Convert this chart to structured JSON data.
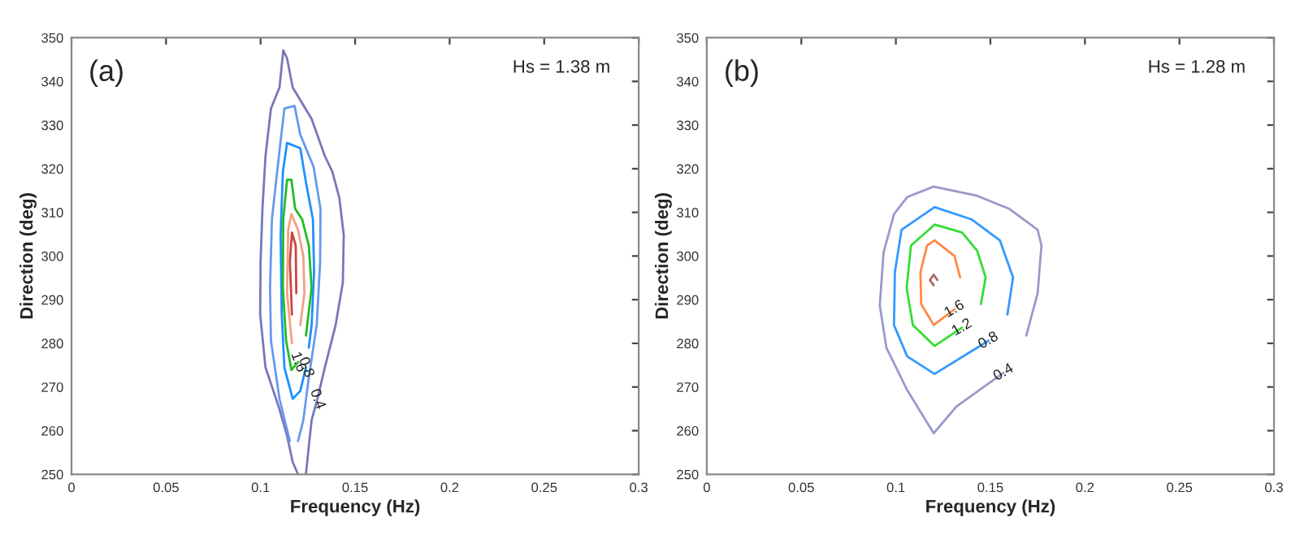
{
  "chart_data": [
    {
      "type": "line",
      "xlabel": "Frequency (Hz)",
      "ylabel": "Direction (deg)",
      "xlim": [
        0,
        0.3
      ],
      "ylim": [
        250,
        350
      ],
      "xticks": [
        0,
        0.05,
        0.1,
        0.15,
        0.2,
        0.25,
        0.3
      ],
      "yticks": [
        250,
        260,
        270,
        280,
        290,
        300,
        310,
        320,
        330,
        340,
        350
      ],
      "grid": false,
      "marker": "none",
      "line_style": "solid",
      "series": [
        {
          "color": "#7777bb",
          "x": [
            0.1198,
            0.117,
            0.114,
            0.11,
            0.1026,
            0.0998,
            0.1,
            0.101,
            0.1026,
            0.1055,
            0.11,
            0.112,
            0.114,
            0.117,
            0.127,
            0.134,
            0.138,
            0.1417,
            0.144,
            0.1435,
            0.1397,
            0.134,
            0.13,
            0.127,
            0.1255,
            0.124
          ],
          "values": [
            250,
            252.8,
            258.8,
            264.9,
            274.5,
            286.6,
            298.7,
            310.8,
            322.9,
            333.8,
            338.6,
            347.1,
            345.3,
            338.6,
            331.4,
            322.9,
            319.3,
            313.2,
            304.8,
            293.9,
            284.2,
            274.5,
            267.2,
            262.4,
            256.4,
            250
          ]
        },
        {
          "color": "#6699ee",
          "x": [
            0.1155,
            0.11,
            0.1055,
            0.105,
            0.106,
            0.11,
            0.1126,
            0.118,
            0.121,
            0.128,
            0.1317,
            0.1315,
            0.1297,
            0.1255,
            0.1226,
            0.1198
          ],
          "values": [
            257.6,
            267.3,
            280.6,
            292.7,
            308.4,
            324.1,
            333.8,
            334.4,
            327.8,
            320.5,
            310.8,
            298.7,
            284.2,
            272.1,
            262.4,
            257.6
          ]
        },
        {
          "color": "#1e8fff",
          "x": [
            0.124,
            0.121,
            0.117,
            0.1126,
            0.1112,
            0.1106,
            0.1118,
            0.114,
            0.121,
            0.124,
            0.1277,
            0.1283,
            0.127,
            0.1255
          ],
          "values": [
            274.5,
            269.1,
            267.3,
            274.5,
            286.6,
            304.8,
            319.3,
            325.9,
            324.7,
            316.9,
            308.4,
            296.3,
            284.2,
            279.0
          ]
        },
        {
          "color": "#22bb22",
          "x": [
            0.1198,
            0.1163,
            0.1135,
            0.1118,
            0.112,
            0.114,
            0.1163,
            0.1183,
            0.122,
            0.1255,
            0.127,
            0.124
          ],
          "values": [
            275.7,
            273.9,
            280.6,
            292.7,
            308.4,
            317.5,
            317.5,
            310.8,
            308.4,
            302.4,
            292.7,
            281.8
          ]
        },
        {
          "color": "#f4a080",
          "x": [
            0.1166,
            0.114,
            0.1146,
            0.1163,
            0.1198,
            0.1226,
            0.1232,
            0.121
          ],
          "values": [
            280,
            291.5,
            306,
            309.6,
            306,
            300,
            291.5,
            284.2
          ]
        },
        {
          "color": "#cc4444",
          "x": [
            0.1166,
            0.1155,
            0.1166,
            0.1186,
            0.1189
          ],
          "values": [
            286.6,
            298.7,
            305.4,
            302.4,
            291.5
          ]
        }
      ],
      "annotations": [
        "(a)",
        "Hs = 1.38 m",
        {
          "text": "1.6",
          "x": 0.1198,
          "y": 275.7
        },
        {
          "text": "0.8",
          "x": 0.124,
          "y": 274.5
        },
        {
          "text": "0.4",
          "x": 0.13,
          "y": 267.2
        }
      ]
    },
    {
      "type": "line",
      "xlabel": "Frequency (Hz)",
      "ylabel": "Direction (deg)",
      "xlim": [
        0,
        0.3
      ],
      "ylim": [
        250,
        350
      ],
      "xticks": [
        0,
        0.05,
        0.1,
        0.15,
        0.2,
        0.25,
        0.3
      ],
      "yticks": [
        250,
        260,
        270,
        280,
        290,
        300,
        310,
        320,
        330,
        340,
        350
      ],
      "grid": false,
      "marker": "none",
      "line_style": "solid",
      "series": [
        {
          "color": "#9999cc",
          "x": [
            0.157,
            0.132,
            0.12,
            0.106,
            0.095,
            0.0915,
            0.0935,
            0.099,
            0.106,
            0.12,
            0.143,
            0.16,
            0.175,
            0.177,
            0.175,
            0.169
          ],
          "values": [
            273.3,
            265.5,
            259.4,
            269.3,
            279,
            288.7,
            300.8,
            309.6,
            313.5,
            315.9,
            313.8,
            310.8,
            306,
            302.4,
            291.5,
            281.8
          ]
        },
        {
          "color": "#3399ff",
          "x": [
            0.149,
            0.1205,
            0.106,
            0.099,
            0.0995,
            0.103,
            0.1205,
            0.14,
            0.155,
            0.162,
            0.159
          ],
          "values": [
            280.6,
            273,
            277,
            284.2,
            296.3,
            306,
            311.2,
            308.4,
            303.6,
            295.1,
            286.6
          ]
        },
        {
          "color": "#33dd33",
          "x": [
            0.135,
            0.1205,
            0.109,
            0.1057,
            0.108,
            0.1205,
            0.135,
            0.143,
            0.1475,
            0.145
          ],
          "values": [
            283.6,
            279.4,
            284.2,
            292.7,
            302.4,
            307.2,
            305.4,
            301.2,
            295.1,
            289
          ]
        },
        {
          "color": "#ff8844",
          "x": [
            0.131,
            0.12,
            0.1134,
            0.113,
            0.1165,
            0.1205,
            0.131,
            0.134
          ],
          "values": [
            287.8,
            284.2,
            289,
            296.3,
            302.4,
            303.6,
            300,
            295.1
          ]
        },
        {
          "color": "#aa6666",
          "x": [
            0.12,
            0.118,
            0.12,
            0.122
          ],
          "values": [
            293.3,
            294.5,
            295.7,
            294.5
          ]
        }
      ],
      "annotations": [
        "(b)",
        "Hs = 1.28 m",
        {
          "text": "1.6",
          "x": 0.131,
          "y": 287.8
        },
        {
          "text": "1.2",
          "x": 0.135,
          "y": 283.6
        },
        {
          "text": "0.8",
          "x": 0.149,
          "y": 280.6
        },
        {
          "text": "0.4",
          "x": 0.157,
          "y": 273.3
        }
      ]
    }
  ]
}
